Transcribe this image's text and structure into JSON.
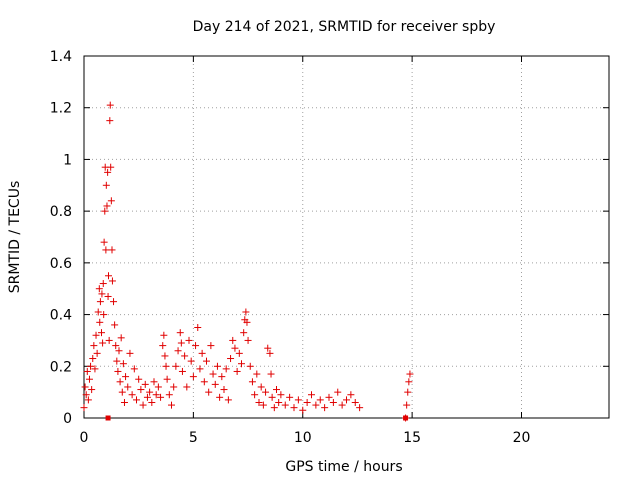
{
  "chart_data": {
    "type": "scatter",
    "title": "Day 214 of 2021, SRMTID for receiver spby",
    "xlabel": "GPS time / hours",
    "ylabel": "SRMTID / TECUs",
    "xlim": [
      0,
      24
    ],
    "ylim": [
      0,
      1.4
    ],
    "xticks": [
      0,
      5,
      10,
      15,
      20
    ],
    "xtick_labels": [
      "0",
      "5",
      "10",
      "15",
      "20"
    ],
    "yticks": [
      0,
      0.2,
      0.4,
      0.6,
      0.8,
      1.0,
      1.2,
      1.4
    ],
    "ytick_labels": [
      "0",
      "0.2",
      "0.4",
      "0.6",
      "0.8",
      "1",
      "1.2",
      "1.4"
    ],
    "grid": true,
    "marker": "plus",
    "color": "#e00000",
    "series": [
      {
        "name": "SRMTID",
        "points": [
          [
            0.0,
            0.04
          ],
          [
            0.05,
            0.12
          ],
          [
            0.1,
            0.09
          ],
          [
            0.15,
            0.18
          ],
          [
            0.2,
            0.07
          ],
          [
            0.25,
            0.15
          ],
          [
            0.3,
            0.2
          ],
          [
            0.35,
            0.11
          ],
          [
            0.4,
            0.23
          ],
          [
            0.45,
            0.28
          ],
          [
            0.5,
            0.19
          ],
          [
            0.55,
            0.32
          ],
          [
            0.6,
            0.25
          ],
          [
            0.65,
            0.41
          ],
          [
            0.7,
            0.5
          ],
          [
            0.72,
            0.37
          ],
          [
            0.75,
            0.45
          ],
          [
            0.8,
            0.33
          ],
          [
            0.82,
            0.48
          ],
          [
            0.85,
            0.29
          ],
          [
            0.88,
            0.52
          ],
          [
            0.9,
            0.4
          ],
          [
            0.92,
            0.68
          ],
          [
            0.95,
            0.8
          ],
          [
            0.97,
            0.97
          ],
          [
            1.0,
            0.65
          ],
          [
            1.02,
            0.9
          ],
          [
            1.05,
            0.82
          ],
          [
            1.08,
            0.95
          ],
          [
            1.1,
            0.47
          ],
          [
            1.12,
            0.55
          ],
          [
            1.15,
            0.3
          ],
          [
            1.18,
            1.15
          ],
          [
            1.2,
            1.21
          ],
          [
            1.22,
            0.97
          ],
          [
            1.25,
            0.84
          ],
          [
            1.28,
            0.65
          ],
          [
            1.3,
            0.53
          ],
          [
            1.35,
            0.45
          ],
          [
            1.4,
            0.36
          ],
          [
            1.45,
            0.28
          ],
          [
            1.5,
            0.22
          ],
          [
            1.55,
            0.18
          ],
          [
            1.6,
            0.26
          ],
          [
            1.65,
            0.14
          ],
          [
            1.7,
            0.31
          ],
          [
            1.75,
            0.1
          ],
          [
            1.8,
            0.21
          ],
          [
            1.85,
            0.06
          ],
          [
            1.9,
            0.16
          ],
          [
            2.0,
            0.12
          ],
          [
            2.1,
            0.25
          ],
          [
            2.2,
            0.09
          ],
          [
            2.3,
            0.19
          ],
          [
            2.4,
            0.07
          ],
          [
            2.5,
            0.15
          ],
          [
            2.6,
            0.11
          ],
          [
            2.7,
            0.05
          ],
          [
            2.8,
            0.13
          ],
          [
            2.9,
            0.08
          ],
          [
            3.0,
            0.1
          ],
          [
            3.1,
            0.06
          ],
          [
            3.2,
            0.14
          ],
          [
            3.3,
            0.09
          ],
          [
            3.4,
            0.12
          ],
          [
            3.5,
            0.08
          ],
          [
            3.6,
            0.28
          ],
          [
            3.65,
            0.32
          ],
          [
            3.7,
            0.24
          ],
          [
            3.75,
            0.2
          ],
          [
            3.8,
            0.15
          ],
          [
            3.9,
            0.09
          ],
          [
            4.0,
            0.05
          ],
          [
            4.1,
            0.12
          ],
          [
            4.2,
            0.2
          ],
          [
            4.3,
            0.26
          ],
          [
            4.4,
            0.33
          ],
          [
            4.45,
            0.29
          ],
          [
            4.5,
            0.18
          ],
          [
            4.6,
            0.24
          ],
          [
            4.7,
            0.12
          ],
          [
            4.8,
            0.3
          ],
          [
            4.9,
            0.22
          ],
          [
            5.0,
            0.16
          ],
          [
            5.1,
            0.28
          ],
          [
            5.2,
            0.35
          ],
          [
            5.3,
            0.19
          ],
          [
            5.4,
            0.25
          ],
          [
            5.5,
            0.14
          ],
          [
            5.6,
            0.22
          ],
          [
            5.7,
            0.1
          ],
          [
            5.8,
            0.28
          ],
          [
            5.9,
            0.17
          ],
          [
            6.0,
            0.13
          ],
          [
            6.1,
            0.2
          ],
          [
            6.2,
            0.08
          ],
          [
            6.3,
            0.16
          ],
          [
            6.4,
            0.11
          ],
          [
            6.5,
            0.19
          ],
          [
            6.6,
            0.07
          ],
          [
            6.7,
            0.23
          ],
          [
            6.8,
            0.3
          ],
          [
            6.9,
            0.27
          ],
          [
            7.0,
            0.18
          ],
          [
            7.1,
            0.25
          ],
          [
            7.2,
            0.21
          ],
          [
            7.3,
            0.33
          ],
          [
            7.35,
            0.38
          ],
          [
            7.4,
            0.41
          ],
          [
            7.45,
            0.37
          ],
          [
            7.5,
            0.3
          ],
          [
            7.6,
            0.2
          ],
          [
            7.7,
            0.14
          ],
          [
            7.8,
            0.09
          ],
          [
            7.9,
            0.17
          ],
          [
            8.0,
            0.06
          ],
          [
            8.1,
            0.12
          ],
          [
            8.2,
            0.05
          ],
          [
            8.3,
            0.1
          ],
          [
            8.4,
            0.27
          ],
          [
            8.5,
            0.25
          ],
          [
            8.55,
            0.17
          ],
          [
            8.6,
            0.08
          ],
          [
            8.7,
            0.04
          ],
          [
            8.8,
            0.11
          ],
          [
            8.9,
            0.06
          ],
          [
            9.0,
            0.09
          ],
          [
            9.2,
            0.05
          ],
          [
            9.4,
            0.08
          ],
          [
            9.6,
            0.04
          ],
          [
            9.8,
            0.07
          ],
          [
            10.0,
            0.03
          ],
          [
            10.2,
            0.06
          ],
          [
            10.4,
            0.09
          ],
          [
            10.6,
            0.05
          ],
          [
            10.8,
            0.07
          ],
          [
            11.0,
            0.04
          ],
          [
            11.2,
            0.08
          ],
          [
            11.4,
            0.06
          ],
          [
            11.6,
            0.1
          ],
          [
            11.8,
            0.05
          ],
          [
            12.0,
            0.07
          ],
          [
            12.2,
            0.09
          ],
          [
            12.4,
            0.06
          ],
          [
            12.6,
            0.04
          ],
          [
            14.7,
            0.0
          ],
          [
            14.75,
            0.05
          ],
          [
            14.8,
            0.1
          ],
          [
            14.85,
            0.14
          ],
          [
            14.9,
            0.17
          ]
        ]
      },
      {
        "name": "marker-squares",
        "points": [
          [
            1.1,
            0.0
          ],
          [
            14.7,
            0.0
          ]
        ]
      }
    ]
  }
}
